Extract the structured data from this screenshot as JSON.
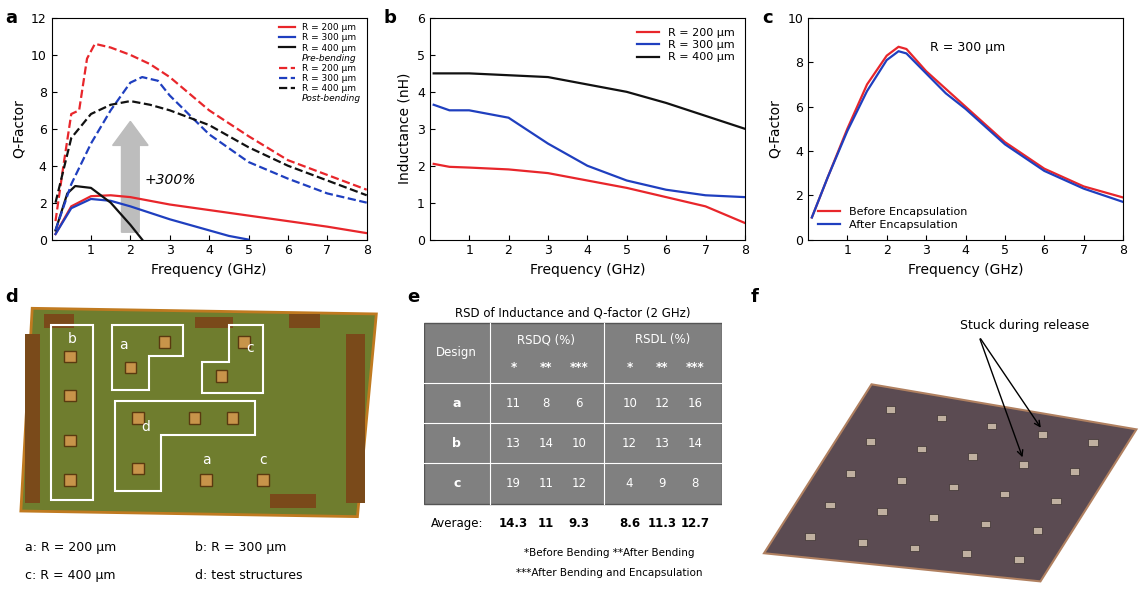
{
  "chart_data": [
    {
      "panel": "a",
      "type": "line",
      "x_label": "Frequency (GHz)",
      "y_label": "Q-Factor",
      "xlim": [
        0,
        8
      ],
      "xticks": [
        1,
        2,
        3,
        4,
        5,
        6,
        7,
        8
      ],
      "ylim": [
        0,
        12
      ],
      "yticks": [
        0,
        2,
        4,
        6,
        8,
        10,
        12
      ],
      "legend": "upper right",
      "annotation": "+300%",
      "series": [
        {
          "name": "R = 200 μm",
          "group": "Pre-bending",
          "color": "#e8262b",
          "line_style": "solid",
          "x": [
            0.1,
            0.5,
            1,
            1.5,
            2,
            3,
            4,
            5,
            6,
            7,
            8
          ],
          "values": [
            0.3,
            1.8,
            2.35,
            2.4,
            2.3,
            1.9,
            1.6,
            1.3,
            1.0,
            0.7,
            0.35
          ]
        },
        {
          "name": "R = 300 μm",
          "group": "Pre-bending",
          "color": "#1f3fbf",
          "line_style": "solid",
          "x": [
            0.1,
            0.5,
            1,
            1.5,
            2,
            3,
            4,
            4.5,
            5
          ],
          "values": [
            0.3,
            1.7,
            2.2,
            2.1,
            1.8,
            1.1,
            0.5,
            0.2,
            0.0
          ]
        },
        {
          "name": "R = 400 μm",
          "group": "Pre-bending",
          "color": "#111111",
          "line_style": "solid",
          "x": [
            0.1,
            0.4,
            0.6,
            1,
            1.5,
            2,
            2.3
          ],
          "values": [
            0.5,
            2.5,
            2.9,
            2.8,
            2.0,
            0.8,
            0.0
          ]
        },
        {
          "name": "R = 200 μm",
          "group": "Post-bending",
          "color": "#e8262b",
          "line_style": "dashed",
          "x": [
            0.1,
            0.3,
            0.5,
            0.7,
            0.9,
            1.1,
            1.5,
            2,
            2.5,
            3,
            4,
            5,
            6,
            7,
            8
          ],
          "values": [
            1.0,
            4.0,
            6.8,
            7.0,
            9.8,
            10.6,
            10.4,
            10.0,
            9.5,
            8.8,
            7.0,
            5.6,
            4.3,
            3.5,
            2.7
          ]
        },
        {
          "name": "R = 300 μm",
          "group": "Post-bending",
          "color": "#1f3fbf",
          "line_style": "dashed",
          "x": [
            0.1,
            0.5,
            1,
            1.5,
            2,
            2.3,
            2.7,
            3,
            4,
            5,
            6,
            7,
            8
          ],
          "values": [
            0.5,
            3.0,
            5.2,
            7.0,
            8.5,
            8.8,
            8.6,
            7.8,
            5.7,
            4.2,
            3.3,
            2.5,
            2.0
          ]
        },
        {
          "name": "R = 400 μm",
          "group": "Post-bending",
          "color": "#111111",
          "line_style": "dashed",
          "x": [
            0.1,
            0.5,
            1,
            1.5,
            2,
            2.5,
            3,
            4,
            5,
            6,
            7,
            8
          ],
          "values": [
            2.0,
            5.5,
            6.8,
            7.3,
            7.5,
            7.3,
            7.0,
            6.2,
            5.0,
            4.0,
            3.2,
            2.4
          ]
        }
      ]
    },
    {
      "panel": "b",
      "type": "line",
      "x_label": "Frequency (GHz)",
      "y_label": "Inductance (nH)",
      "xlim": [
        0,
        8
      ],
      "xticks": [
        1,
        2,
        3,
        4,
        5,
        6,
        7,
        8
      ],
      "ylim": [
        0,
        6
      ],
      "yticks": [
        0,
        1,
        2,
        3,
        4,
        5,
        6
      ],
      "legend": "upper right",
      "x": [
        0.1,
        0.5,
        1,
        2,
        3,
        4,
        5,
        6,
        7,
        8
      ],
      "series": [
        {
          "name": "R = 200 μm",
          "color": "#e8262b",
          "line_style": "solid",
          "values": [
            2.05,
            1.97,
            1.95,
            1.9,
            1.8,
            1.6,
            1.4,
            1.15,
            0.9,
            0.45
          ]
        },
        {
          "name": "R = 300 μm",
          "color": "#1f3fbf",
          "line_style": "solid",
          "values": [
            3.65,
            3.5,
            3.5,
            3.3,
            2.6,
            2.0,
            1.6,
            1.35,
            1.2,
            1.15
          ]
        },
        {
          "name": "R = 400 μm",
          "color": "#111111",
          "line_style": "solid",
          "values": [
            4.5,
            4.5,
            4.5,
            4.45,
            4.4,
            4.2,
            4.0,
            3.7,
            3.35,
            3.0
          ]
        }
      ]
    },
    {
      "panel": "c",
      "type": "line",
      "x_label": "Frequency (GHz)",
      "y_label": "Q-Factor",
      "xlim": [
        0,
        8
      ],
      "xticks": [
        1,
        2,
        3,
        4,
        5,
        6,
        7,
        8
      ],
      "ylim": [
        0,
        10
      ],
      "yticks": [
        0,
        2,
        4,
        6,
        8,
        10
      ],
      "legend": "lower left",
      "annotation": "R = 300 μm",
      "x": [
        0.1,
        0.5,
        1,
        1.5,
        2,
        2.3,
        2.5,
        3,
        3.5,
        4,
        5,
        6,
        7,
        8
      ],
      "series": [
        {
          "name": "Before Encapsulation",
          "color": "#e8262b",
          "line_style": "solid",
          "values": [
            1.0,
            2.8,
            5.0,
            7.0,
            8.3,
            8.7,
            8.6,
            7.6,
            6.8,
            6.0,
            4.4,
            3.2,
            2.4,
            1.9
          ]
        },
        {
          "name": "After Encapsulation",
          "color": "#1f3fbf",
          "line_style": "solid",
          "values": [
            1.0,
            2.8,
            4.9,
            6.7,
            8.1,
            8.5,
            8.4,
            7.5,
            6.6,
            5.9,
            4.3,
            3.1,
            2.3,
            1.7
          ]
        }
      ]
    }
  ],
  "photo_d": {
    "panel": "d",
    "region_labels": [
      "b",
      "a",
      "c",
      "d"
    ],
    "loose_labels": [
      "a",
      "c"
    ],
    "caption": [
      "a: R = 200 μm",
      "b: R = 300 μm",
      "c: R = 400 μm",
      "d: test structures"
    ]
  },
  "table_e": {
    "panel": "e",
    "title": "RSD of Inductance and Q-factor (2 GHz)",
    "header": [
      "Design",
      "RSDQ (%)",
      "RSDL (%)"
    ],
    "subheader": [
      "*",
      "**",
      "***",
      "*",
      "**",
      "***"
    ],
    "rows": [
      {
        "design": "a",
        "values": [
          11,
          8,
          6,
          10,
          12,
          16
        ]
      },
      {
        "design": "b",
        "values": [
          13,
          14,
          10,
          12,
          13,
          14
        ]
      },
      {
        "design": "c",
        "values": [
          19,
          11,
          12,
          4,
          9,
          8
        ]
      }
    ],
    "average": {
      "label": "Average:",
      "values": [
        14.3,
        11,
        9.3,
        8.6,
        11.3,
        12.7
      ]
    },
    "footnotes": [
      "*Before Bending **After Bending",
      "***After Bending and Encapsulation"
    ]
  },
  "photo_f": {
    "panel": "f",
    "annotation": "Stuck during release"
  }
}
